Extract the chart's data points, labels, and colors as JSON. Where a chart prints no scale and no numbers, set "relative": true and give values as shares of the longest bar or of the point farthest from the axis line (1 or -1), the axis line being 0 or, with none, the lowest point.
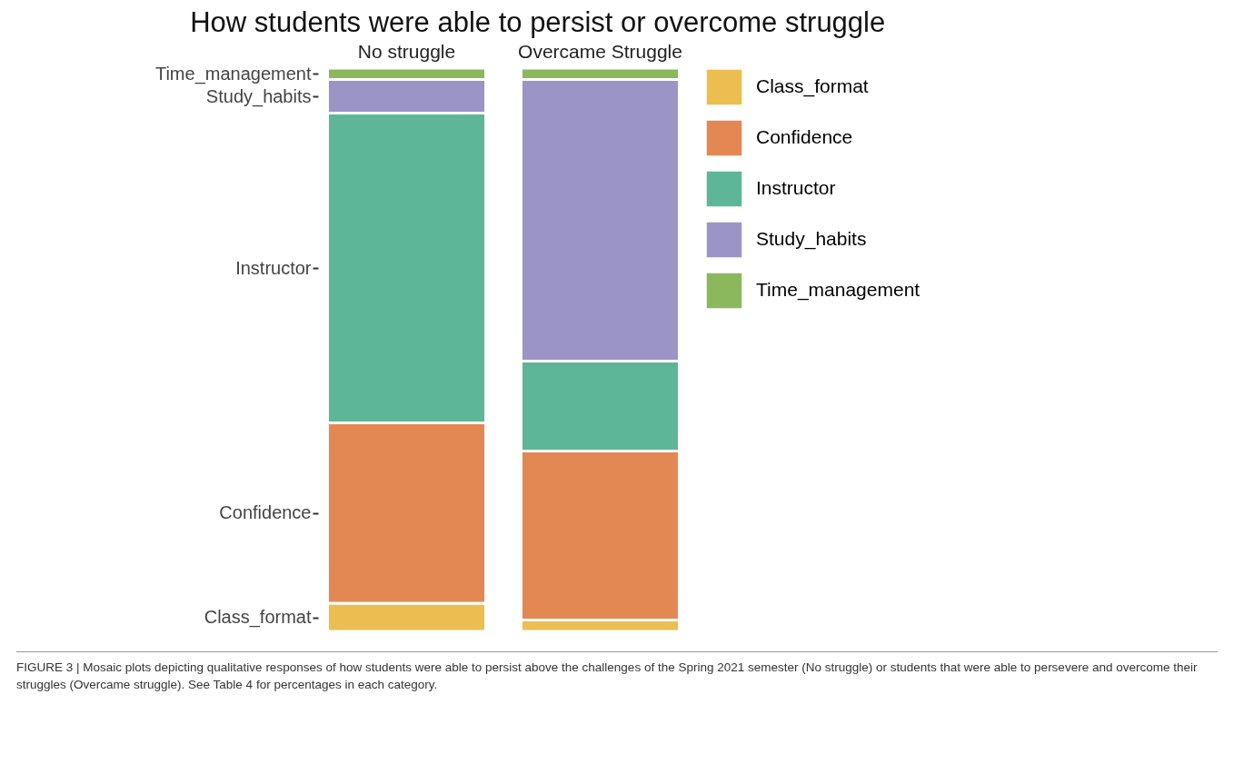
{
  "chart_data": {
    "type": "bar",
    "title": "How students were able to persist or overcome struggle",
    "categories": [
      "No struggle",
      "Overcame Struggle"
    ],
    "stacked": true,
    "relative": true,
    "legend": "right",
    "series": [
      {
        "name": "Class_format",
        "color": "#ebbb48",
        "values": [
          0.05,
          0.02
        ]
      },
      {
        "name": "Confidence",
        "color": "#e3824a",
        "values": [
          0.32,
          0.3
        ]
      },
      {
        "name": "Instructor",
        "color": "#56b394",
        "values": [
          0.55,
          0.16
        ]
      },
      {
        "name": "Study_habits",
        "color": "#9590c4",
        "values": [
          0.06,
          0.5
        ]
      },
      {
        "name": "Time_management",
        "color": "#85b555",
        "values": [
          0.02,
          0.02
        ]
      }
    ],
    "annotations": [
      "FIGURE 3 | Mosaic plots depicting qualitative responses of how students were able to persist above the challenges of the Spring 2021 semester (No struggle) or students that were able to persevere and overcome their struggles (Overcame struggle). See Table 4 for percentages in each category."
    ]
  }
}
